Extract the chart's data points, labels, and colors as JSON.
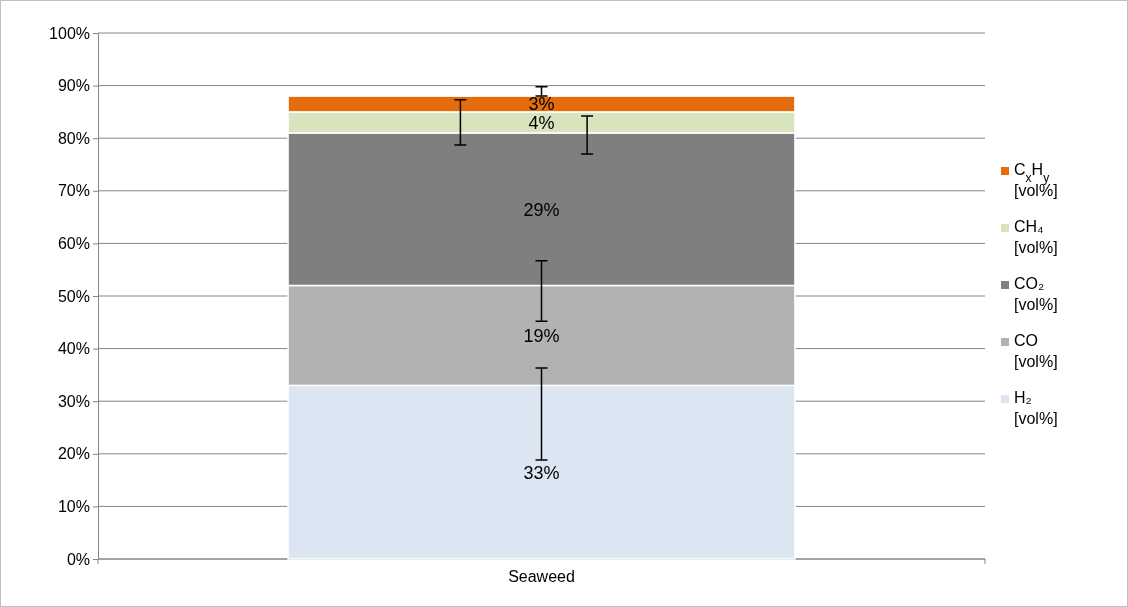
{
  "chart_data": {
    "type": "bar",
    "stacked": true,
    "categories": [
      "Seaweed"
    ],
    "series": [
      {
        "name": "H₂ [vol%]",
        "color": "#dce6f2",
        "values": [
          33
        ],
        "value_labels": [
          "33%"
        ],
        "errors": [
          [
            18.8,
            36.3
          ]
        ]
      },
      {
        "name": "CO [vol%]",
        "color": "#b2b2b2",
        "values": [
          19
        ],
        "value_labels": [
          "19%"
        ],
        "errors": [
          [
            45.2,
            56.7
          ]
        ]
      },
      {
        "name": "CO₂ [vol%]",
        "color": "#7f7f7f",
        "values": [
          29
        ],
        "value_labels": [
          "29%"
        ],
        "errors": [
          [
            78.7,
            87.3
          ]
        ]
      },
      {
        "name": "CH₄ [vol%]",
        "color": "#d7e4bd",
        "values": [
          4
        ],
        "value_labels": [
          "4%"
        ],
        "errors": [
          [
            77,
            84.2
          ]
        ]
      },
      {
        "name": "C$_{x}$H$_{y}$ [vol%]",
        "color": "#e46c0a",
        "values": [
          3
        ],
        "value_labels": [
          "3%"
        ],
        "errors": [
          [
            88,
            89.8
          ]
        ]
      }
    ],
    "ylim": [
      0,
      100
    ],
    "yticks": [
      {
        "value": 0,
        "label": "0%"
      },
      {
        "value": 10,
        "label": "10%"
      },
      {
        "value": 20,
        "label": "20%"
      },
      {
        "value": 30,
        "label": "30%"
      },
      {
        "value": 40,
        "label": "40%"
      },
      {
        "value": 50,
        "label": "50%"
      },
      {
        "value": 60,
        "label": "60%"
      },
      {
        "value": 70,
        "label": "70%"
      },
      {
        "value": 80,
        "label": "80%"
      },
      {
        "value": 90,
        "label": "90%"
      },
      {
        "value": 100,
        "label": "100%"
      }
    ],
    "grid": "y",
    "legend": "right"
  }
}
